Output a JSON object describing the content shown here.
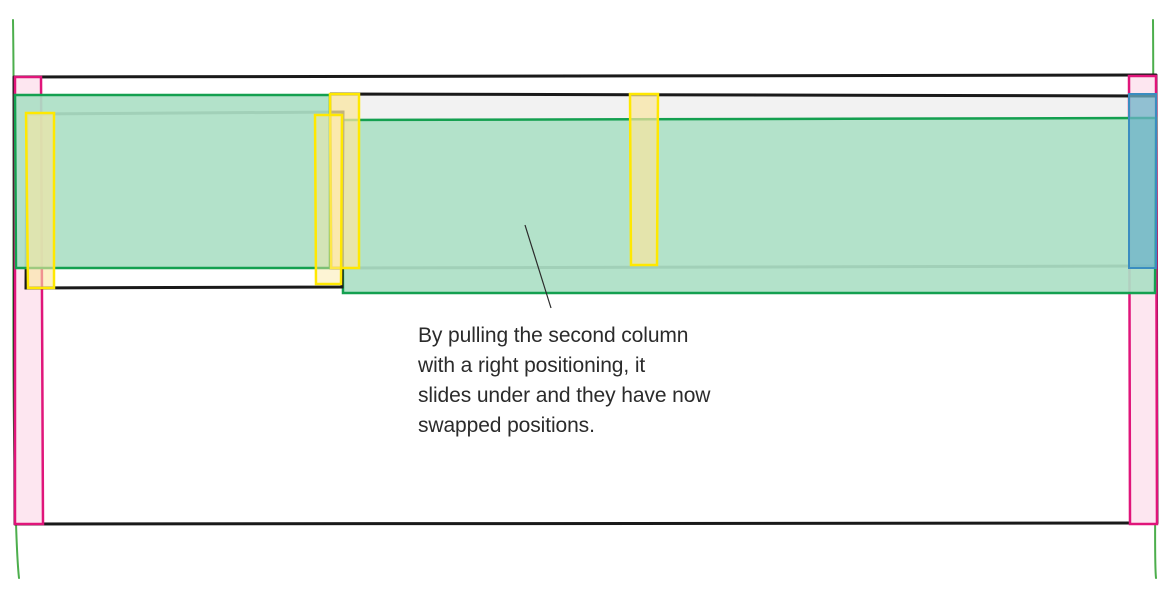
{
  "colors": {
    "outline": "#1a1a1a",
    "column_fill": "#ade0c6",
    "column_stroke": "#14a050",
    "gutter_fill": "#fae6a0",
    "gutter_stroke": "#ffe800",
    "page_margin_fill": "#fde6f0",
    "page_margin_stroke": "#e0157a",
    "guide_line": "#4cae4c",
    "row_band_fill": "#f2f2f2",
    "right_margin_overlap_fill": "#6cb3c8",
    "text": "#2b2b2b"
  },
  "annotation": {
    "lines": [
      "By pulling the second column",
      "with a right positioning, it",
      "slides under and they have now",
      "swapped positions."
    ]
  }
}
